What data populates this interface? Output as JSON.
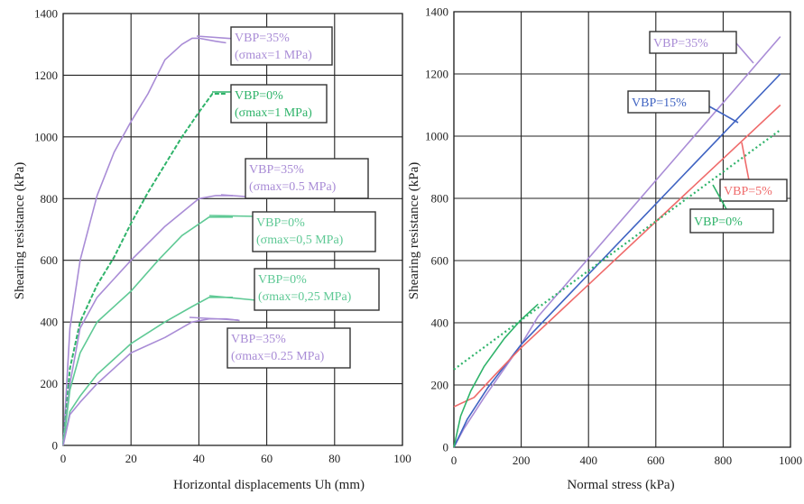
{
  "colors": {
    "vbp35": "#a98cd6",
    "vbp15": "#3f63c2",
    "vbp5": "#ef6a6a",
    "vbp0": "#2fb36a",
    "vbp0_light": "#5fc995",
    "grid": "#222222",
    "label_border": "#333333"
  },
  "chart_data": [
    {
      "type": "line",
      "xlabel": "Horizontal displacements Uh (mm)",
      "ylabel": "Shearing resistance (kPa)",
      "xlim": [
        0,
        100
      ],
      "ylim": [
        0,
        1400
      ],
      "xticks": [
        "0",
        "20",
        "40",
        "60",
        "80",
        "100"
      ],
      "yticks": [
        "0",
        "200",
        "400",
        "600",
        "800",
        "1000",
        "1200",
        "1400"
      ],
      "grid": true,
      "series": [
        {
          "key": "vbp35_1",
          "color_key": "vbp35",
          "label": [
            "VBP=35%",
            "(σmax=1 MPa)"
          ],
          "x": [
            0,
            2,
            5,
            10,
            15,
            20,
            25,
            30,
            35,
            38,
            40,
            45,
            48
          ],
          "y": [
            0,
            380,
            600,
            810,
            950,
            1050,
            1140,
            1250,
            1300,
            1320,
            1320,
            1310,
            1305
          ]
        },
        {
          "key": "vbp0_1",
          "color_key": "vbp0",
          "label": [
            "VBP=0%",
            "(σmax=1 MPa)"
          ],
          "style": "dashed",
          "x": [
            0,
            2,
            5,
            10,
            15,
            20,
            25,
            30,
            35,
            40,
            44,
            48
          ],
          "y": [
            0,
            250,
            400,
            520,
            610,
            720,
            820,
            910,
            1000,
            1080,
            1140,
            1140
          ]
        },
        {
          "key": "vbp35_05",
          "color_key": "vbp35",
          "label": [
            "VBP=35%",
            "(σmax=0.5 MPa)"
          ],
          "x": [
            0,
            2,
            5,
            10,
            20,
            30,
            40,
            45,
            50
          ],
          "y": [
            0,
            200,
            380,
            480,
            600,
            710,
            800,
            810,
            810
          ]
        },
        {
          "key": "vbp0_05",
          "color_key": "vbp0_light",
          "label": [
            "VBP=0%",
            "(σmax=0,5 MPa)"
          ],
          "x": [
            0,
            2,
            5,
            10,
            20,
            28,
            35,
            43,
            50
          ],
          "y": [
            0,
            180,
            300,
            400,
            500,
            600,
            680,
            740,
            740
          ]
        },
        {
          "key": "vbp0_025",
          "color_key": "vbp0_light",
          "label": [
            "VBP=0%",
            "(σmax=0,25 MPa)"
          ],
          "x": [
            0,
            2,
            5,
            10,
            20,
            30,
            38,
            43,
            50
          ],
          "y": [
            0,
            110,
            160,
            230,
            330,
            400,
            450,
            480,
            480
          ]
        },
        {
          "key": "vbp35_025",
          "color_key": "vbp35",
          "label": [
            "VBP=35%",
            "(σmax=0.25 MPa)"
          ],
          "x": [
            0,
            2,
            5,
            10,
            20,
            30,
            38,
            43,
            48,
            52
          ],
          "y": [
            0,
            100,
            140,
            200,
            300,
            350,
            400,
            410,
            410,
            405
          ]
        }
      ]
    },
    {
      "type": "line",
      "xlabel": "Normal stress (kPa)",
      "ylabel": "Shearing resistance (kPa)",
      "xlim": [
        0,
        1000
      ],
      "ylim": [
        0,
        1400
      ],
      "xticks": [
        "0",
        "200",
        "400",
        "600",
        "800",
        "1000"
      ],
      "yticks": [
        "0",
        "200",
        "400",
        "600",
        "800",
        "1000",
        "1200",
        "1400"
      ],
      "grid": true,
      "series": [
        {
          "key": "vbp35",
          "color_key": "vbp35",
          "label": [
            "VBP=35%"
          ],
          "x": [
            0,
            30,
            90,
            200,
            250,
            970
          ],
          "y": [
            0,
            60,
            160,
            330,
            420,
            1320
          ]
        },
        {
          "key": "vbp15",
          "color_key": "vbp15",
          "label": [
            "VBP=15%"
          ],
          "x": [
            0,
            40,
            100,
            200,
            970
          ],
          "y": [
            0,
            90,
            190,
            330,
            1200
          ]
        },
        {
          "key": "vbp5",
          "color_key": "vbp5",
          "label": [
            "VBP=5%"
          ],
          "x": [
            0,
            60,
            120,
            200,
            970
          ],
          "y": [
            130,
            160,
            230,
            320,
            1100
          ]
        },
        {
          "key": "vbp0_fit",
          "color_key": "vbp0",
          "style": "dotted",
          "label": [
            "VBP=0%"
          ],
          "x": [
            0,
            970
          ],
          "y": [
            250,
            1020
          ]
        },
        {
          "key": "vbp0_data",
          "color_key": "vbp0",
          "x": [
            0,
            20,
            50,
            90,
            150,
            200,
            250
          ],
          "y": [
            0,
            100,
            180,
            260,
            350,
            410,
            460
          ]
        }
      ]
    }
  ]
}
